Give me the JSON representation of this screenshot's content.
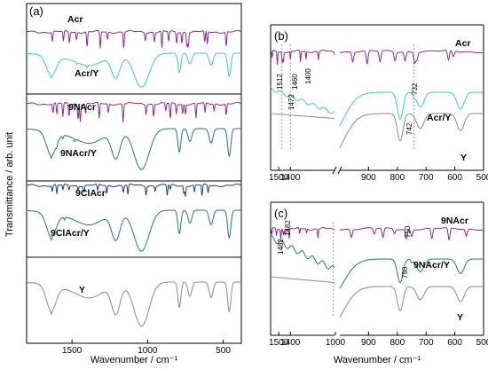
{
  "figure": {
    "ylabel": "Transmittance / arb. unit",
    "xlabel_left": "Wavenumber / cm⁻¹",
    "xlabel_right": "Wavenumber / cm⁻¹"
  },
  "colors": {
    "purple": "#8e2a8e",
    "cyan": "#3cc6d4",
    "teal": "#1f7a73",
    "navy": "#1f3f66",
    "gray": "#8a8a8a"
  },
  "chart_data": [
    {
      "panel": "(a)",
      "type": "line",
      "xlabel": "Wavenumber / cm⁻¹",
      "ylabel": "Transmittance / arb. unit",
      "x_reversed": true,
      "xlim": [
        1800,
        380
      ],
      "xticks": [
        1500,
        1000,
        500
      ],
      "grid": false,
      "sub_boxes": 4,
      "series": [
        {
          "name": "Acr",
          "color": "#8e2a8e",
          "style": "sharp",
          "bands": [
            1630,
            1557,
            1517,
            1470,
            1400,
            1313,
            1265,
            1158,
            1015,
            955,
            905,
            860,
            808,
            773,
            740,
            731,
            622,
            605,
            480
          ]
        },
        {
          "name": "Acr/Y",
          "color": "#3cc6d4",
          "style": "zeolite",
          "bands": [
            1637,
            1470,
            1400
          ]
        },
        {
          "name": "9NAcr",
          "color": "#8e2a8e",
          "style": "sharp",
          "bands": [
            1625,
            1600,
            1560,
            1520,
            1460,
            1445,
            1410,
            1320,
            1260,
            1162,
            1010,
            960,
            880,
            850,
            810,
            768,
            750,
            680,
            620,
            560,
            480
          ]
        },
        {
          "name": "9NAcr/Y",
          "color": "#1f7a73",
          "style": "zeolite",
          "bands": [
            1637,
            1600,
            1560,
            1482
          ]
        },
        {
          "name": "9ClAcr",
          "color": "#1f3f66",
          "style": "sharp",
          "bands": [
            1630,
            1600,
            1560,
            1520,
            1460,
            1420,
            1330,
            1270,
            1160,
            1130,
            1010,
            950,
            870,
            850,
            760,
            750,
            690,
            640,
            600
          ]
        },
        {
          "name": "9ClAcr/Y",
          "color": "#1f7a73",
          "style": "zeolite",
          "bands": [
            1637,
            1550
          ]
        },
        {
          "name": "Y",
          "color": "#8a8a8a",
          "style": "zeolite",
          "bands": [
            1637
          ]
        }
      ]
    },
    {
      "panel": "(b)",
      "type": "line",
      "xlabel": "Wavenumber / cm⁻¹",
      "x_reversed": true,
      "broken_axis": true,
      "segments": [
        {
          "xlim": [
            1570,
            1020
          ],
          "xticks": [
            1500,
            1400
          ]
        },
        {
          "xlim": [
            1000,
            500
          ],
          "xticks": [
            900,
            800,
            700,
            600,
            500
          ]
        }
      ],
      "series": [
        {
          "name": "Acr",
          "color": "#8e2a8e",
          "style": "sharp",
          "bands": [
            1557,
            1512,
            1470,
            1460,
            1400,
            1313,
            1265,
            1158,
            1015,
            955,
            905,
            860,
            808,
            773,
            740,
            732,
            622,
            605
          ]
        },
        {
          "name": "Acr/Y",
          "color": "#3cc6d4",
          "style": "zeolite",
          "bands": [
            1512,
            1472,
            1400,
            742
          ]
        },
        {
          "name": "Y",
          "color": "#8a8a8a",
          "style": "zeolite",
          "bands": []
        }
      ],
      "annotations": [
        "1512",
        "1472",
        "1460",
        "1400",
        "732",
        "742"
      ],
      "dashed_lines_at": [
        1472,
        1400,
        742
      ]
    },
    {
      "panel": "(c)",
      "type": "line",
      "xlabel": "Wavenumber / cm⁻¹",
      "x_reversed": true,
      "broken_axis": true,
      "segments": [
        {
          "xlim": [
            1570,
            1020
          ],
          "xticks": [
            1500,
            1400,
            1000
          ]
        },
        {
          "xlim": [
            1000,
            500
          ],
          "xticks": [
            900,
            800,
            700,
            600,
            500
          ]
        }
      ],
      "series": [
        {
          "name": "9NAcr",
          "color": "#8e2a8e",
          "style": "sharp",
          "bands": [
            1560,
            1520,
            1482,
            1460,
            1445,
            1410,
            1320,
            1260,
            1162,
            960,
            880,
            850,
            810,
            768,
            750,
            680,
            620,
            560
          ]
        },
        {
          "name": "9NAcr/Y",
          "color": "#1f7a73",
          "style": "zeolite",
          "bands": [
            1560,
            1482,
            750
          ]
        },
        {
          "name": "Y",
          "color": "#8a8a8a",
          "style": "zeolite",
          "bands": []
        }
      ],
      "annotations": [
        "1482",
        "1482",
        "750",
        "750"
      ],
      "dashed_lines_at": [
        1030
      ]
    }
  ]
}
